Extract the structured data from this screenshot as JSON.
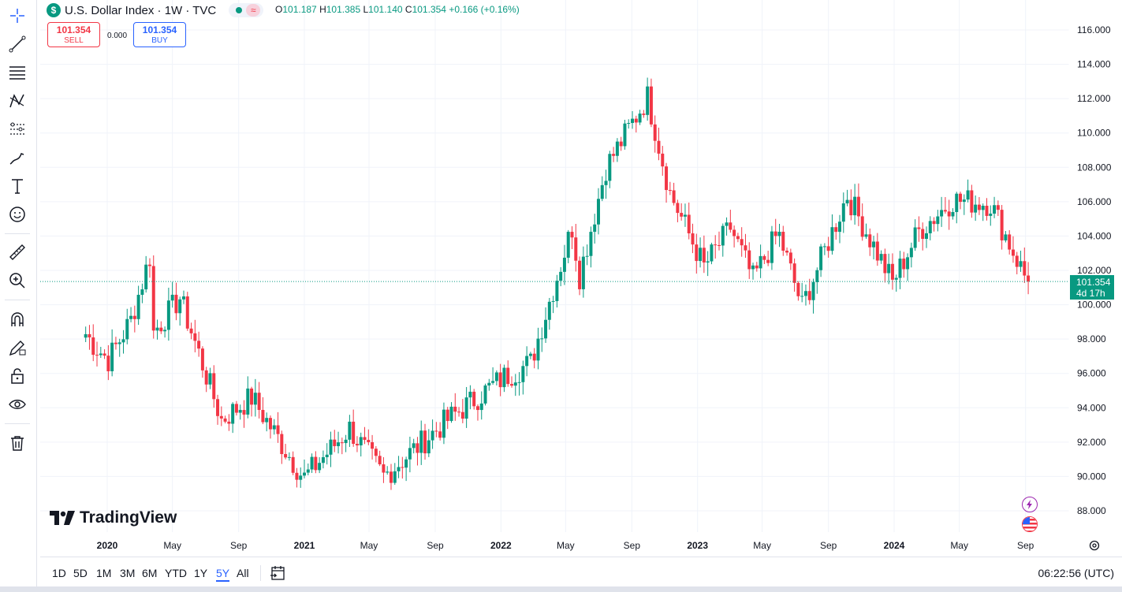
{
  "legend": {
    "symbol_icon": "$",
    "title": "U.S. Dollar Index · 1W · TVC",
    "market_status": "market-open",
    "indicator_icon": "≈",
    "ohlc": {
      "o_label": "O",
      "o": "101.187",
      "h_label": "H",
      "h": "101.385",
      "l_label": "L",
      "l": "101.140",
      "c_label": "C",
      "c": "101.354",
      "change": "+0.166 (+0.16%)"
    }
  },
  "trade": {
    "sell_price": "101.354",
    "sell_label": "SELL",
    "spread": "0.000",
    "buy_price": "101.354",
    "buy_label": "BUY"
  },
  "price_axis": {
    "ticks": [
      "116.000",
      "114.000",
      "112.000",
      "110.000",
      "108.000",
      "106.000",
      "104.000",
      "102.000",
      "100.000",
      "98.000",
      "96.000",
      "94.000",
      "92.000",
      "90.000",
      "88.000"
    ],
    "current_price": "101.354",
    "countdown": "4d 17h"
  },
  "time_axis": {
    "ticks": [
      {
        "label": "2020",
        "bold": true
      },
      {
        "label": "May",
        "bold": false
      },
      {
        "label": "Sep",
        "bold": false
      },
      {
        "label": "2021",
        "bold": true
      },
      {
        "label": "May",
        "bold": false
      },
      {
        "label": "Sep",
        "bold": false
      },
      {
        "label": "2022",
        "bold": true
      },
      {
        "label": "May",
        "bold": false
      },
      {
        "label": "Sep",
        "bold": false
      },
      {
        "label": "2023",
        "bold": true
      },
      {
        "label": "May",
        "bold": false
      },
      {
        "label": "Sep",
        "bold": false
      },
      {
        "label": "2024",
        "bold": true
      },
      {
        "label": "May",
        "bold": false
      },
      {
        "label": "Sep",
        "bold": false
      }
    ]
  },
  "branding": {
    "logo_text": "TradingView"
  },
  "bottom": {
    "ranges": [
      "1D",
      "5D",
      "1M",
      "3M",
      "6M",
      "YTD",
      "1Y",
      "5Y",
      "All"
    ],
    "active_range": "5Y",
    "clock": "06:22:56 (UTC)"
  },
  "toolbar": {
    "tools": [
      "crosshair-icon",
      "trend-line-icon",
      "fib-levels-icon",
      "pattern-icon",
      "forecast-icon",
      "brush-icon",
      "text-icon",
      "emoji-icon",
      "ruler-icon",
      "zoom-in-icon",
      "magnet-icon",
      "pencil-lock-icon",
      "lock-icon",
      "eye-icon",
      "trash-icon"
    ]
  },
  "colors": {
    "up": "#089981",
    "down": "#f23645",
    "accent": "#2962ff"
  },
  "chart_data": {
    "type": "candlestick",
    "title": "U.S. Dollar Index · 1W · TVC",
    "interval": "1W",
    "ylim": [
      87,
      117
    ],
    "y_ticks": [
      88,
      90,
      92,
      94,
      96,
      98,
      100,
      102,
      104,
      106,
      108,
      110,
      112,
      114,
      116
    ],
    "grid": true,
    "last_price": 101.354,
    "x_ticks": [
      "2020",
      "May",
      "Sep",
      "2021",
      "May",
      "Sep",
      "2022",
      "May",
      "Sep",
      "2023",
      "May",
      "Sep",
      "2024",
      "May",
      "Sep"
    ],
    "close_path": [
      {
        "x": "2019-11-22",
        "y": 98.3
      },
      {
        "x": "2019-12-06",
        "y": 97.7
      },
      {
        "x": "2020-01-03",
        "y": 96.8
      },
      {
        "x": "2020-02-14",
        "y": 99.1
      },
      {
        "x": "2020-03-20",
        "y": 102.8
      },
      {
        "x": "2020-03-27",
        "y": 98.4
      },
      {
        "x": "2020-05-15",
        "y": 100.4
      },
      {
        "x": "2020-07-31",
        "y": 93.3
      },
      {
        "x": "2020-09-25",
        "y": 94.6
      },
      {
        "x": "2020-12-31",
        "y": 89.9
      },
      {
        "x": "2021-03-26",
        "y": 92.8
      },
      {
        "x": "2021-05-28",
        "y": 90.0
      },
      {
        "x": "2021-09-24",
        "y": 93.3
      },
      {
        "x": "2022-01-07",
        "y": 95.8
      },
      {
        "x": "2022-02-25",
        "y": 96.6
      },
      {
        "x": "2022-05-13",
        "y": 104.5
      },
      {
        "x": "2022-05-27",
        "y": 101.7
      },
      {
        "x": "2022-07-15",
        "y": 108.0
      },
      {
        "x": "2022-09-30",
        "y": 112.1
      },
      {
        "x": "2022-11-11",
        "y": 106.5
      },
      {
        "x": "2023-01-13",
        "y": 102.2
      },
      {
        "x": "2023-03-03",
        "y": 104.5
      },
      {
        "x": "2023-04-14",
        "y": 101.5
      },
      {
        "x": "2023-05-31",
        "y": 104.2
      },
      {
        "x": "2023-07-14",
        "y": 99.9
      },
      {
        "x": "2023-10-06",
        "y": 106.4
      },
      {
        "x": "2023-12-29",
        "y": 101.3
      },
      {
        "x": "2024-02-16",
        "y": 104.3
      },
      {
        "x": "2024-04-19",
        "y": 106.1
      },
      {
        "x": "2024-06-28",
        "y": 105.9
      },
      {
        "x": "2024-08-30",
        "y": 101.7
      },
      {
        "x": "2024-09-06",
        "y": 101.354
      }
    ]
  }
}
